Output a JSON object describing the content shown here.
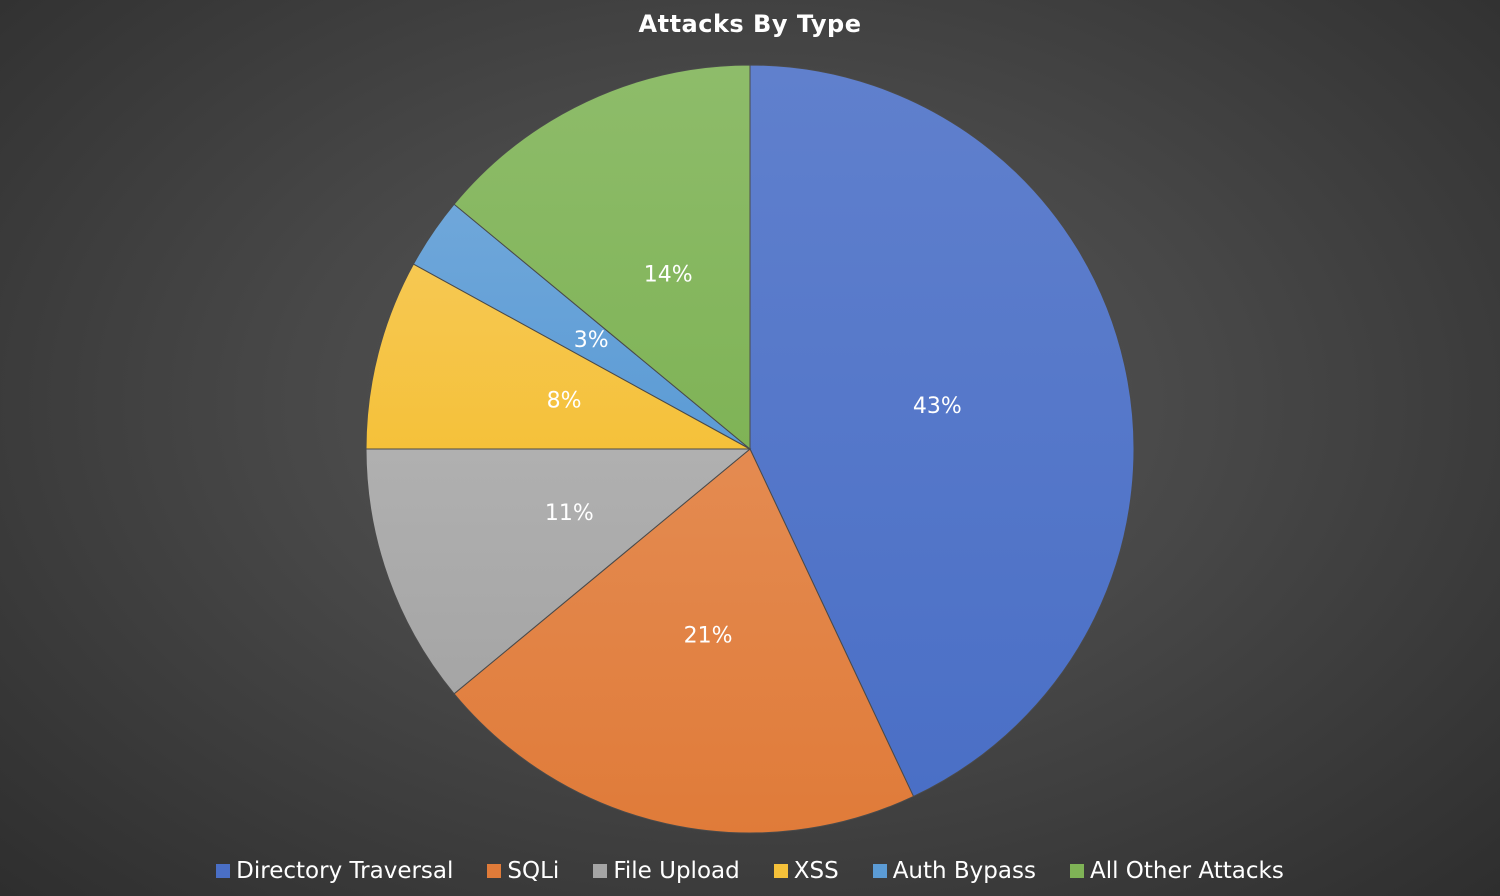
{
  "chart_data": {
    "type": "pie",
    "title": "Attacks By Type",
    "slices": [
      {
        "name": "Directory Traversal",
        "value": 43,
        "label": "43%",
        "color": "#4a6fc6"
      },
      {
        "name": "SQLi",
        "value": 21,
        "label": "21%",
        "color": "#e07b39"
      },
      {
        "name": "File Upload",
        "value": 11,
        "label": "11%",
        "color": "#a5a5a5"
      },
      {
        "name": "XSS",
        "value": 8,
        "label": "8%",
        "color": "#f5c13a"
      },
      {
        "name": "Auth Bypass",
        "value": 3,
        "label": "3%",
        "color": "#5b9bd5"
      },
      {
        "name": "All Other Attacks",
        "value": 14,
        "label": "14%",
        "color": "#7fb356"
      }
    ],
    "start_angle": "12 o'clock",
    "direction": "clockwise",
    "legend_position": "bottom"
  }
}
